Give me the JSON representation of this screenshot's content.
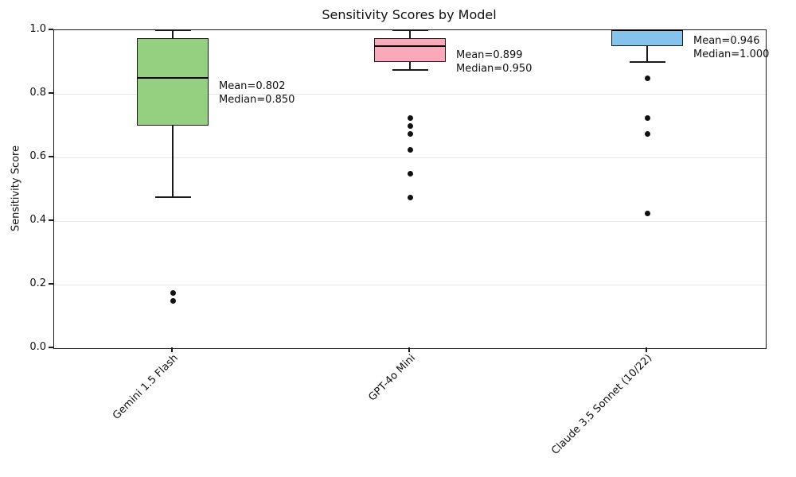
{
  "figure": {
    "title": "Sensitivity Scores by Model",
    "ylabel": "Sensitivity Score"
  },
  "colors": {
    "background": "#ffffff",
    "box_edge": "#1a1a1a",
    "median_line": "#000000",
    "whisker": "#1a1a1a",
    "outlier": "#111111",
    "gridline": "#e6e6e6",
    "text": "#111111"
  },
  "chart_data": {
    "type": "box",
    "title": "Sensitivity Scores by Model",
    "xlabel": "",
    "ylabel": "Sensitivity Score",
    "ylim": [
      0.0,
      1.0
    ],
    "yticks": [
      0.0,
      0.2,
      0.4,
      0.6,
      0.8,
      1.0
    ],
    "ytick_labels": [
      "0.0",
      "0.2",
      "0.4",
      "0.6",
      "0.8",
      "1.0"
    ],
    "grid": "horizontal",
    "legend": "none",
    "categories": [
      "Gemini 1.5 Flash",
      "GPT-4o Mini",
      "Claude 3.5 Sonnet (10/22)"
    ],
    "series": [
      {
        "name": "Gemini 1.5 Flash",
        "fill_color": "#94d07f",
        "whisker_low": 0.475,
        "q1": 0.7,
        "median": 0.85,
        "q3": 0.975,
        "whisker_high": 1.0,
        "mean": 0.802,
        "outliers": [
          0.175,
          0.15
        ],
        "mean_label": "Mean=0.802",
        "median_label": "Median=0.850"
      },
      {
        "name": "GPT-4o Mini",
        "fill_color": "#f9a9ba",
        "whisker_low": 0.875,
        "q1": 0.9,
        "median": 0.95,
        "q3": 0.975,
        "whisker_high": 1.0,
        "mean": 0.899,
        "outliers": [
          0.725,
          0.7,
          0.675,
          0.625,
          0.55,
          0.475
        ],
        "mean_label": "Mean=0.899",
        "median_label": "Median=0.950"
      },
      {
        "name": "Claude 3.5 Sonnet (10/22)",
        "fill_color": "#85c3ed",
        "whisker_low": 0.9,
        "q1": 0.95,
        "median": 1.0,
        "q3": 1.0,
        "whisker_high": 1.0,
        "mean": 0.946,
        "outliers": [
          0.85,
          0.725,
          0.675,
          0.425
        ],
        "mean_label": "Mean=0.946",
        "median_label": "Median=1.000"
      }
    ]
  }
}
